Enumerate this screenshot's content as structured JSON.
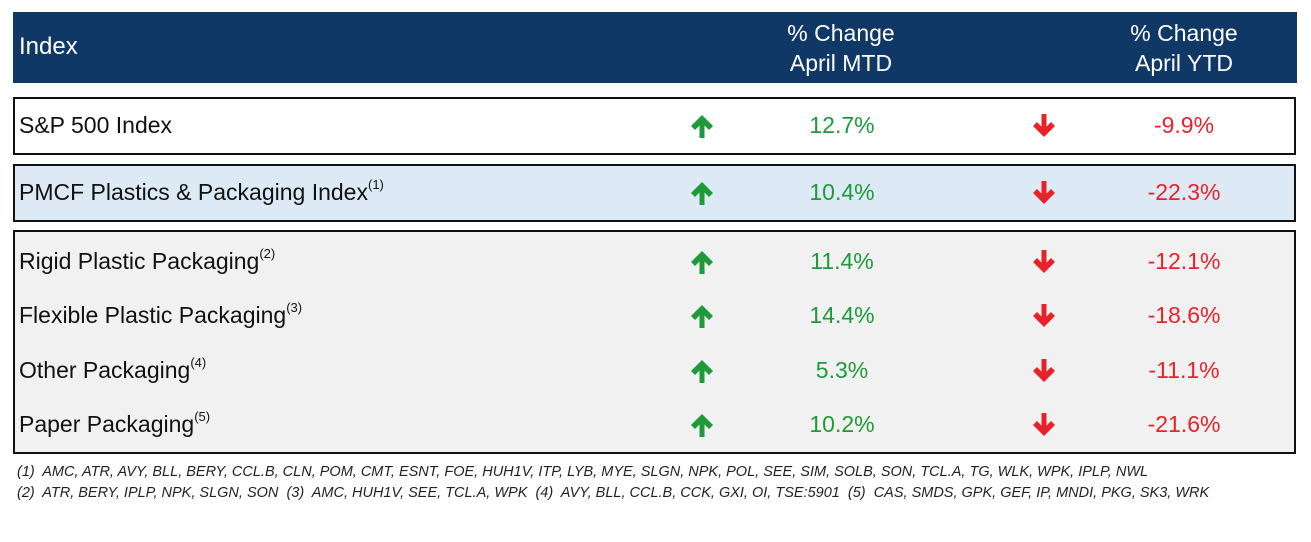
{
  "header": {
    "index_label": "Index",
    "mtd_line1": "% Change",
    "mtd_line2": "April MTD",
    "ytd_line1": "% Change",
    "ytd_line2": "April YTD"
  },
  "colors": {
    "header_bg": "#103866",
    "up": "#1e9a3a",
    "down": "#e8222a",
    "pmcf_bg": "#dde9f4",
    "sub_bg": "#f1f1f1"
  },
  "rows": [
    {
      "label": "S&P 500 Index",
      "note": "",
      "mtd": "12.7%",
      "ytd": "-9.9%",
      "mtd_icon": "arrow-up-icon",
      "ytd_icon": "arrow-down-icon"
    },
    {
      "label": "PMCF Plastics & Packaging Index",
      "note": "(1)",
      "mtd": "10.4%",
      "ytd": "-22.3%",
      "mtd_icon": "arrow-up-icon",
      "ytd_icon": "arrow-down-icon"
    },
    {
      "label": "Rigid Plastic Packaging",
      "note": "(2)",
      "mtd": "11.4%",
      "ytd": "-12.1%",
      "mtd_icon": "arrow-up-icon",
      "ytd_icon": "arrow-down-icon"
    },
    {
      "label": "Flexible Plastic Packaging",
      "note": "(3)",
      "mtd": "14.4%",
      "ytd": "-18.6%",
      "mtd_icon": "arrow-up-icon",
      "ytd_icon": "arrow-down-icon"
    },
    {
      "label": "Other Packaging",
      "note": "(4)",
      "mtd": "5.3%",
      "ytd": "-11.1%",
      "mtd_icon": "arrow-up-icon",
      "ytd_icon": "arrow-down-icon"
    },
    {
      "label": "Paper Packaging",
      "note": "(5)",
      "mtd": "10.2%",
      "ytd": "-21.6%",
      "mtd_icon": "arrow-up-icon",
      "ytd_icon": "arrow-down-icon"
    }
  ],
  "footnotes": {
    "n1_num": "(1)",
    "n1_text": "AMC, ATR, AVY, BLL, BERY, CCL.B, CLN, POM, CMT, ESNT, FOE, HUH1V, ITP, LYB, MYE, SLGN, NPK, POL, SEE, SIM, SOLB, SON, TCL.A, TG, WLK, WPK, IPLP, NWL",
    "n2_num": "(2)",
    "n2_text": "ATR, BERY, IPLP, NPK, SLGN, SON",
    "n3_num": "(3)",
    "n3_text": "AMC, HUH1V, SEE, TCL.A, WPK",
    "n4_num": "(4)",
    "n4_text": "AVY, BLL, CCL.B, CCK, GXI, OI, TSE:5901",
    "n5_num": "(5)",
    "n5_text": "CAS, SMDS, GPK, GEF, IP, MNDI, PKG, SK3, WRK"
  }
}
